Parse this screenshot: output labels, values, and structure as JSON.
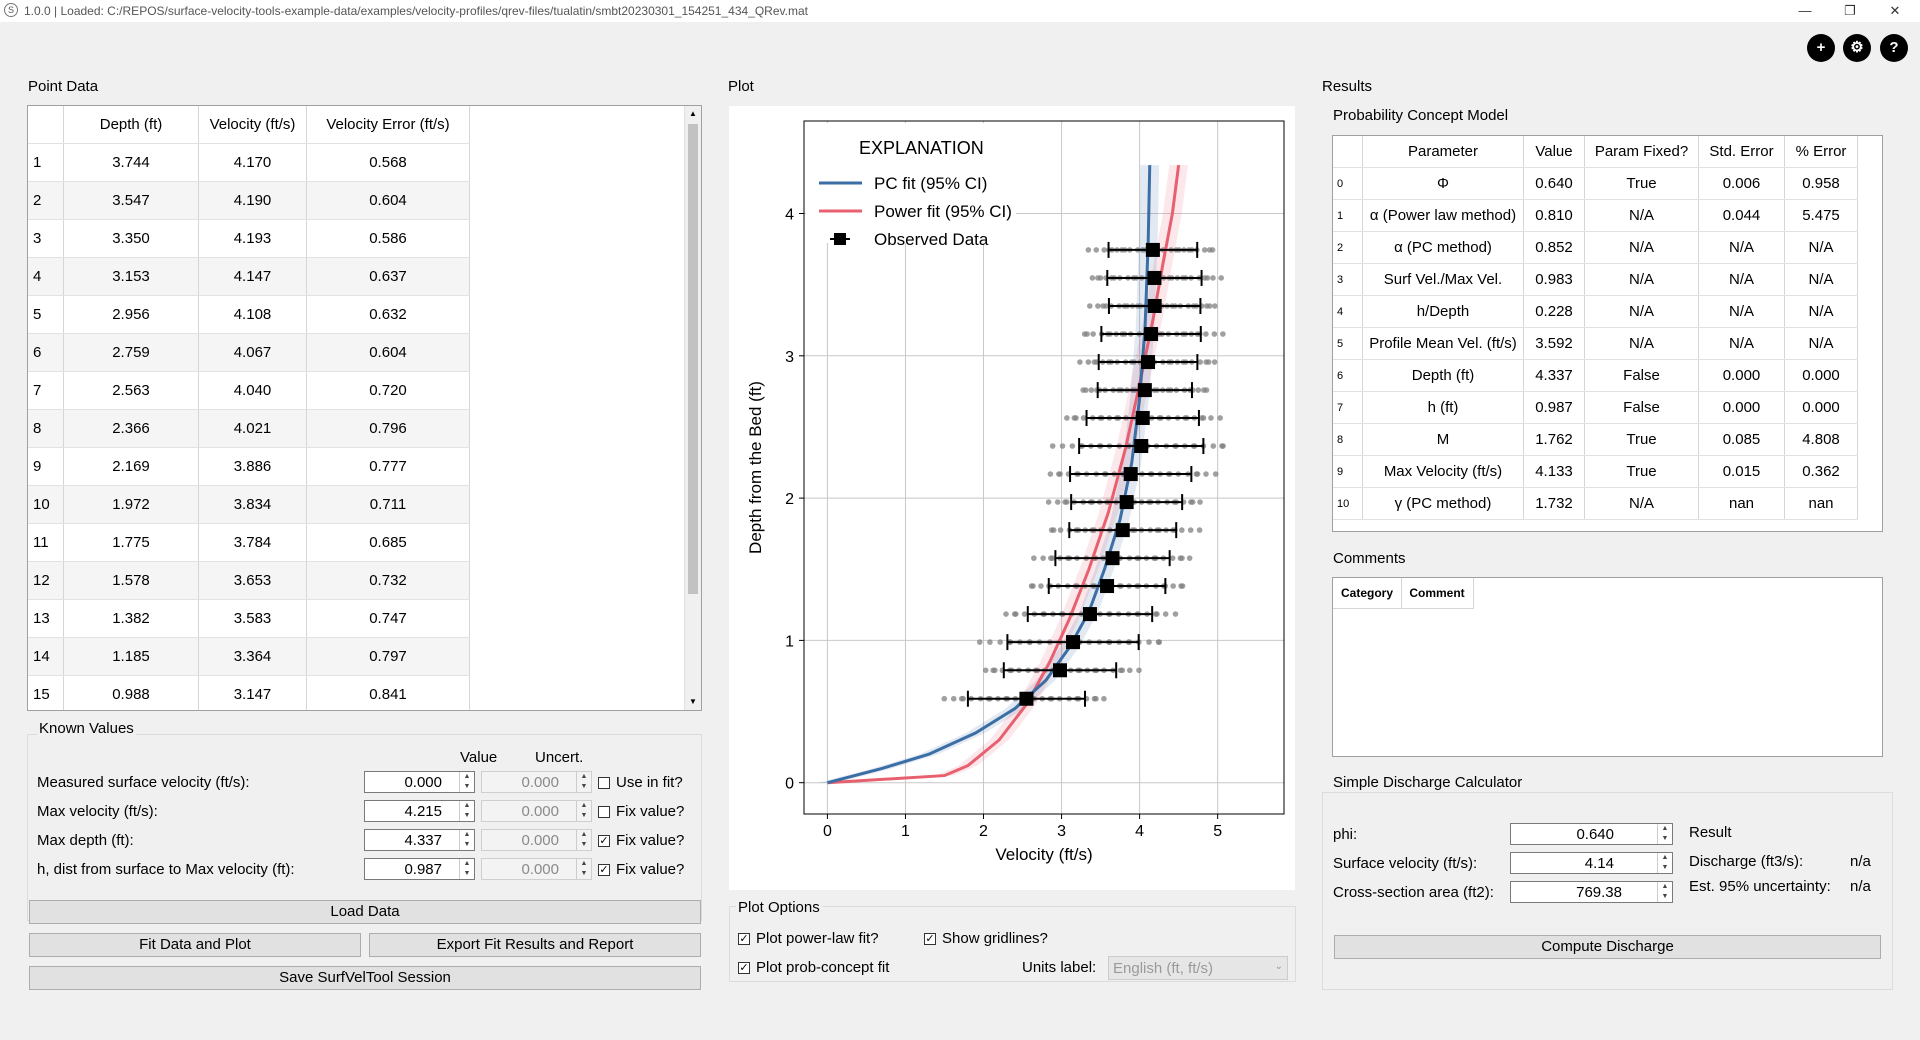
{
  "app": {
    "title": "1.0.0  |  Loaded: C:/REPOS/surface-velocity-tools-example-data/examples/velocity-profiles/qrev-files/tualatin/smbt20230301_154251_434_QRev.mat"
  },
  "icons": {
    "comment": "comment-plus-icon",
    "settings": "gear-icon",
    "help": "help-icon"
  },
  "point_data": {
    "title": "Point Data",
    "columns": [
      "Depth (ft)",
      "Velocity (ft/s)",
      "Velocity Error (ft/s)"
    ],
    "rows": [
      [
        "1",
        "3.744",
        "4.170",
        "0.568"
      ],
      [
        "2",
        "3.547",
        "4.190",
        "0.604"
      ],
      [
        "3",
        "3.350",
        "4.193",
        "0.586"
      ],
      [
        "4",
        "3.153",
        "4.147",
        "0.637"
      ],
      [
        "5",
        "2.956",
        "4.108",
        "0.632"
      ],
      [
        "6",
        "2.759",
        "4.067",
        "0.604"
      ],
      [
        "7",
        "2.563",
        "4.040",
        "0.720"
      ],
      [
        "8",
        "2.366",
        "4.021",
        "0.796"
      ],
      [
        "9",
        "2.169",
        "3.886",
        "0.777"
      ],
      [
        "10",
        "1.972",
        "3.834",
        "0.711"
      ],
      [
        "11",
        "1.775",
        "3.784",
        "0.685"
      ],
      [
        "12",
        "1.578",
        "3.653",
        "0.732"
      ],
      [
        "13",
        "1.382",
        "3.583",
        "0.747"
      ],
      [
        "14",
        "1.185",
        "3.364",
        "0.797"
      ],
      [
        "15",
        "0.988",
        "3.147",
        "0.841"
      ]
    ]
  },
  "known_values": {
    "title": "Known Values",
    "col_value": "Value",
    "col_uncert": "Uncert.",
    "rows": [
      {
        "label": "Measured surface velocity (ft/s):",
        "value": "0.000",
        "uncert": "0.000",
        "check_label": "Use in fit?",
        "checked": false
      },
      {
        "label": "Max velocity (ft/s):",
        "value": "4.215",
        "uncert": "0.000",
        "check_label": "Fix value?",
        "checked": false
      },
      {
        "label": "Max depth (ft):",
        "value": "4.337",
        "uncert": "0.000",
        "check_label": "Fix value?",
        "checked": true
      },
      {
        "label": "h, dist from surface to Max velocity (ft):",
        "value": "0.987",
        "uncert": "0.000",
        "check_label": "Fix value?",
        "checked": true
      }
    ]
  },
  "buttons": {
    "load": "Load Data",
    "fit": "Fit Data and Plot",
    "export": "Export Fit Results and Report",
    "save": "Save SurfVelTool Session",
    "compute": "Compute Discharge"
  },
  "plot": {
    "title": "Plot",
    "legend_title": "EXPLANATION",
    "legend": [
      "PC fit (95% CI)",
      "Power fit (95% CI)",
      "Observed Data"
    ],
    "colors": {
      "pc": "#3a6ea5",
      "power": "#e8606f",
      "obs": "#000000",
      "raw": "#808080"
    }
  },
  "chart_data": {
    "type": "scatter",
    "title": "",
    "xlabel": "Velocity (ft/s)",
    "ylabel": "Depth from the Bed (ft)",
    "xlim": [
      -0.3,
      5.85
    ],
    "ylim": [
      -0.22,
      4.65
    ],
    "xticks": [
      0,
      1,
      2,
      3,
      4,
      5
    ],
    "yticks": [
      0,
      1,
      2,
      3,
      4
    ],
    "grid": true,
    "legend_position": "top-left",
    "observed": {
      "name": "Observed Data",
      "x": [
        4.17,
        4.19,
        4.193,
        4.147,
        4.108,
        4.067,
        4.04,
        4.021,
        3.886,
        3.834,
        3.784,
        3.653,
        3.583,
        3.364,
        3.147,
        2.98,
        2.55
      ],
      "y": [
        3.744,
        3.547,
        3.35,
        3.153,
        2.956,
        2.759,
        2.563,
        2.366,
        2.169,
        1.972,
        1.775,
        1.578,
        1.382,
        1.185,
        0.988,
        0.79,
        0.59
      ],
      "err": [
        0.568,
        0.604,
        0.586,
        0.637,
        0.632,
        0.604,
        0.72,
        0.796,
        0.777,
        0.711,
        0.685,
        0.732,
        0.747,
        0.797,
        0.841,
        0.72,
        0.75
      ]
    },
    "pc_fit": {
      "name": "PC fit (95% CI)",
      "x": [
        0,
        0.7,
        1.3,
        1.9,
        2.4,
        2.8,
        3.1,
        3.35,
        3.55,
        3.75,
        3.9,
        4.0,
        4.07,
        4.11,
        4.13
      ],
      "y": [
        0,
        0.1,
        0.2,
        0.35,
        0.52,
        0.72,
        0.95,
        1.2,
        1.5,
        1.85,
        2.25,
        2.7,
        3.2,
        3.8,
        4.34
      ]
    },
    "power_fit": {
      "name": "Power fit (95% CI)",
      "x": [
        0,
        1.5,
        1.8,
        2.2,
        2.55,
        2.85,
        3.1,
        3.35,
        3.6,
        3.82,
        4.0,
        4.17,
        4.3,
        4.42,
        4.5
      ],
      "y": [
        0,
        0.05,
        0.12,
        0.3,
        0.55,
        0.85,
        1.15,
        1.5,
        1.9,
        2.35,
        2.8,
        3.25,
        3.65,
        4.0,
        4.34
      ]
    }
  },
  "plot_options": {
    "title": "Plot Options",
    "power": "Plot power-law fit?",
    "gridlines": "Show gridlines?",
    "prob": "Plot prob-concept fit",
    "units_label": "Units label:",
    "units_value": "English (ft, ft/s)"
  },
  "results": {
    "title": "Results",
    "pcm_title": "Probability Concept Model",
    "columns": [
      "Parameter",
      "Value",
      "Param Fixed?",
      "Std. Error",
      "% Error"
    ],
    "rows": [
      [
        "0",
        "Φ",
        "0.640",
        "True",
        "0.006",
        "0.958"
      ],
      [
        "1",
        "α (Power law method)",
        "0.810",
        "N/A",
        "0.044",
        "5.475"
      ],
      [
        "2",
        "α (PC method)",
        "0.852",
        "N/A",
        "N/A",
        "N/A"
      ],
      [
        "3",
        "Surf Vel./Max Vel.",
        "0.983",
        "N/A",
        "N/A",
        "N/A"
      ],
      [
        "4",
        "h/Depth",
        "0.228",
        "N/A",
        "N/A",
        "N/A"
      ],
      [
        "5",
        "Profile Mean Vel. (ft/s)",
        "3.592",
        "N/A",
        "N/A",
        "N/A"
      ],
      [
        "6",
        "Depth (ft)",
        "4.337",
        "False",
        "0.000",
        "0.000"
      ],
      [
        "7",
        "h (ft)",
        "0.987",
        "False",
        "0.000",
        "0.000"
      ],
      [
        "8",
        "M",
        "1.762",
        "True",
        "0.085",
        "4.808"
      ],
      [
        "9",
        "Max Velocity (ft/s)",
        "4.133",
        "True",
        "0.015",
        "0.362"
      ],
      [
        "10",
        "γ (PC method)",
        "1.732",
        "N/A",
        "nan",
        "nan"
      ]
    ]
  },
  "comments": {
    "title": "Comments",
    "columns": [
      "Category",
      "Comment"
    ]
  },
  "discharge": {
    "title": "Simple Discharge Calculator",
    "phi_label": "phi:",
    "phi": "0.640",
    "sv_label": "Surface velocity (ft/s):",
    "sv": "4.14",
    "area_label": "Cross-section area (ft2):",
    "area": "769.38",
    "result_title": "Result",
    "discharge_label": "Discharge (ft3/s):",
    "discharge": "n/a",
    "unc_label": "Est. 95% uncertainty:",
    "unc": "n/a"
  }
}
